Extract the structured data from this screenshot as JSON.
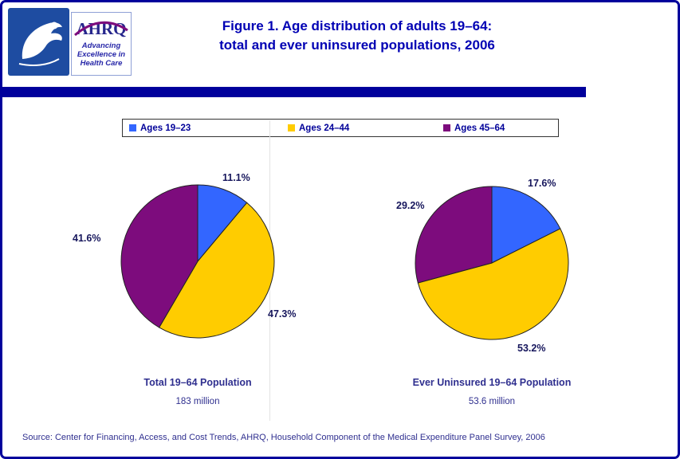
{
  "page": {
    "title_line1": "Figure 1. Age distribution of adults 19–64:",
    "title_line2": "total and ever uninsured populations, 2006",
    "source": "Source: Center for Financing, Access, and Cost Trends, AHRQ, Household Component of the Medical Expenditure Panel Survey, 2006"
  },
  "logos": {
    "ahrq_acronym": "AHRQ",
    "ahrq_tagline_line1": "Advancing",
    "ahrq_tagline_line2": "Excellence in",
    "ahrq_tagline_line3": "Health Care"
  },
  "colors": {
    "accent_navy": "#00009C",
    "title_blue": "#0000B4",
    "caption_blue": "#2F2F8F",
    "slice_blue": "#3366FF",
    "slice_yellow": "#FFCC00",
    "slice_purple": "#7D0C7D"
  },
  "legend": {
    "items": [
      {
        "label": "Ages 19–23",
        "color": "#3366FF"
      },
      {
        "label": "Ages 24–44",
        "color": "#FFCC00"
      },
      {
        "label": "Ages 45–64",
        "color": "#7D0C7D"
      }
    ]
  },
  "chart_data": [
    {
      "type": "pie",
      "title": "Total 19–64 Population",
      "subtitle": "183 million",
      "categories": [
        "Ages 19–23",
        "Ages 24–44",
        "Ages 45–64"
      ],
      "values": [
        11.1,
        47.3,
        41.6
      ],
      "labels": [
        "11.1%",
        "47.3%",
        "41.6%"
      ],
      "colors": [
        "#3366FF",
        "#FFCC00",
        "#7D0C7D"
      ],
      "start_angle_deg": 0,
      "direction": "clockwise",
      "legend_position": "top-shared"
    },
    {
      "type": "pie",
      "title": "Ever Uninsured 19–64 Population",
      "subtitle": "53.6 million",
      "categories": [
        "Ages 19–23",
        "Ages 24–44",
        "Ages 45–64"
      ],
      "values": [
        17.6,
        53.2,
        29.2
      ],
      "labels": [
        "17.6%",
        "53.2%",
        "29.2%"
      ],
      "colors": [
        "#3366FF",
        "#FFCC00",
        "#7D0C7D"
      ],
      "start_angle_deg": 0,
      "direction": "clockwise",
      "legend_position": "top-shared"
    }
  ]
}
